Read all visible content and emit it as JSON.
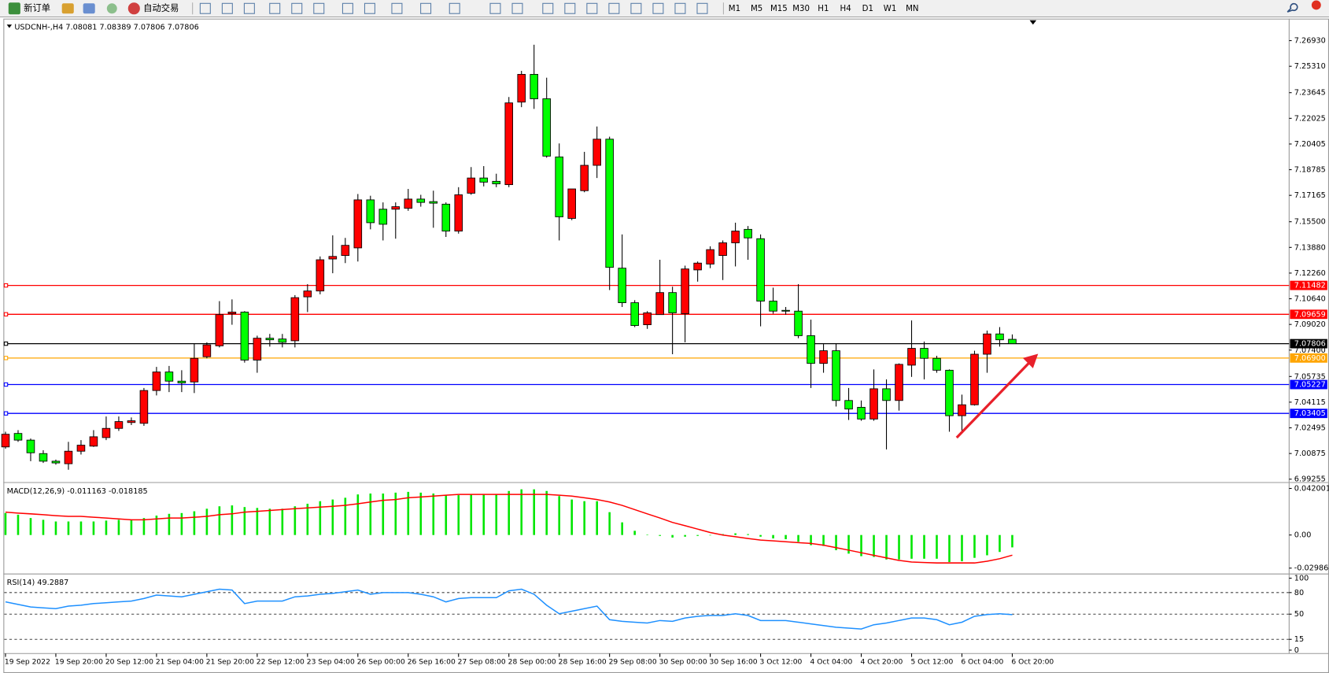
{
  "toolbar": {
    "buttons": [
      "新订单",
      "自动交易"
    ],
    "timeframes": [
      "M1",
      "M5",
      "M15",
      "M30",
      "H1",
      "H4",
      "D1",
      "W1",
      "MN"
    ]
  },
  "chart_data": [
    {
      "type": "candlestick",
      "title": "USDCNH-,H4  7.08081 7.08389 7.07806 7.07806",
      "up_color": "#ff0000",
      "down_color": "#00ff00",
      "xlim": [
        -0.1,
        102
      ],
      "xticks": [
        {
          "value": 0,
          "label": "19 Sep 2022"
        },
        {
          "value": 4,
          "label": "19 Sep 20:00"
        },
        {
          "value": 8,
          "label": "20 Sep 12:00"
        },
        {
          "value": 12,
          "label": "21 Sep 04:00"
        },
        {
          "value": 16,
          "label": "21 Sep 20:00"
        },
        {
          "value": 20,
          "label": "22 Sep 12:00"
        },
        {
          "value": 24,
          "label": "23 Sep 04:00"
        },
        {
          "value": 28,
          "label": "26 Sep 00:00"
        },
        {
          "value": 32,
          "label": "26 Sep 16:00"
        },
        {
          "value": 36,
          "label": "27 Sep 08:00"
        },
        {
          "value": 40,
          "label": "28 Sep 00:00"
        },
        {
          "value": 44,
          "label": "28 Sep 16:00"
        },
        {
          "value": 48,
          "label": "29 Sep 08:00"
        },
        {
          "value": 52,
          "label": "30 Sep 00:00"
        },
        {
          "value": 56,
          "label": "30 Sep 16:00"
        },
        {
          "value": 60,
          "label": "3 Oct 12:00"
        },
        {
          "value": 64,
          "label": "4 Oct 04:00"
        },
        {
          "value": 68,
          "label": "4 Oct 20:00"
        },
        {
          "value": 72,
          "label": "5 Oct 12:00"
        },
        {
          "value": 76,
          "label": "6 Oct 04:00"
        },
        {
          "value": 80,
          "label": "6 Oct 20:00"
        }
      ],
      "ylim": [
        6.9915,
        7.2821
      ],
      "yticks": [
        {
          "value": 7.2693,
          "label": "7.26930"
        },
        {
          "value": 7.2531,
          "label": "7.25310"
        },
        7.23645,
        7.22025,
        7.20405,
        7.18785,
        7.17165,
        {
          "value": 7.155,
          "label": "7.15500"
        },
        {
          "value": 7.1388,
          "label": "7.13880"
        },
        {
          "value": 7.1226,
          "label": "7.12260"
        },
        {
          "value": 7.1064,
          "label": "7.10640"
        },
        {
          "value": 7.0902,
          "label": "7.09020"
        },
        {
          "value": 7.074,
          "label": "7.07400"
        },
        7.05735,
        7.04115,
        7.02495,
        7.00875,
        6.99255
      ],
      "levels": [
        {
          "price": 7.11482,
          "color": "#ff0000"
        },
        {
          "price": 7.09659,
          "color": "#ff0000"
        },
        {
          "price": {
            "value": 7.069,
            "label": "7.06900"
          },
          "color": "#ffa500"
        },
        {
          "price": 7.05227,
          "color": "#0000ff"
        },
        {
          "price": 7.03405,
          "color": "#0000ff"
        },
        {
          "price": 7.07806,
          "color": "#000000"
        }
      ],
      "open": [
        7.0129,
        7.0214,
        7.0172,
        7.0087,
        7.0039,
        7.0023,
        7.0102,
        7.0134,
        7.0188,
        7.0246,
        7.0283,
        7.0278,
        7.0485,
        7.0602,
        7.0544,
        7.0539,
        7.0698,
        7.0767,
        7.097,
        7.098,
        7.0677,
        7.0815,
        7.081,
        7.0799,
        7.1076,
        7.1113,
        7.1315,
        7.1337,
        7.1385,
        7.1688,
        7.1629,
        7.1629,
        7.1635,
        7.1693,
        7.1677,
        7.1661,
        7.1491,
        7.173,
        7.1826,
        7.1805,
        7.1784,
        7.2305,
        7.248,
        7.2326,
        7.1959,
        7.1571,
        7.1746,
        7.1906,
        7.2071,
        7.1257,
        7.1039,
        7.09,
        7.0964,
        7.1103,
        7.097,
        7.1246,
        7.1283,
        7.1337,
        7.1417,
        7.1502,
        7.1443,
        7.1049,
        7.0991,
        7.0986,
        7.0831,
        7.0656,
        7.0736,
        7.0422,
        7.0379,
        7.0305,
        7.0496,
        7.0422,
        7.0645,
        7.0751,
        7.0688,
        7.0613,
        7.0326,
        7.0395,
        7.0714,
        7.0842,
        7.08081
      ],
      "high": [
        7.0225,
        7.0235,
        7.0182,
        7.0108,
        7.0049,
        7.0161,
        7.0172,
        7.0235,
        7.0321,
        7.0321,
        7.0315,
        7.0501,
        7.0634,
        7.064,
        7.0613,
        7.0783,
        7.0789,
        7.1049,
        7.106,
        7.0986,
        7.0831,
        7.0842,
        7.0842,
        7.1087,
        7.1156,
        7.1331,
        7.1464,
        7.1448,
        7.1725,
        7.1714,
        7.1672,
        7.1672,
        7.1757,
        7.172,
        7.1746,
        7.1672,
        7.1768,
        7.1895,
        7.1901,
        7.1853,
        7.2337,
        7.2502,
        7.2667,
        7.2459,
        7.2044,
        7.1757,
        7.1991,
        7.2151,
        7.2087,
        7.147,
        7.1055,
        7.0986,
        7.131,
        7.114,
        7.1273,
        7.1299,
        7.1395,
        7.1432,
        7.1544,
        7.1523,
        7.147,
        7.1134,
        7.1012,
        7.1156,
        7.0932,
        7.0778,
        7.0783,
        7.0501,
        7.0422,
        7.0618,
        7.0555,
        7.0656,
        7.0927,
        7.0794,
        7.0704,
        7.0618,
        7.0459,
        7.0736,
        7.0863,
        7.0885,
        7.08389
      ],
      "low": [
        7.0118,
        7.0161,
        7.0039,
        7.0028,
        7.0017,
        6.9985,
        7.0081,
        7.0129,
        7.0172,
        7.023,
        7.0267,
        7.0262,
        7.0454,
        7.0475,
        7.0475,
        7.0469,
        7.0688,
        7.0757,
        7.09,
        7.0661,
        7.0597,
        7.0762,
        7.0757,
        7.0757,
        7.098,
        7.1092,
        7.1225,
        7.1289,
        7.1299,
        7.1502,
        7.1432,
        7.1443,
        7.1619,
        7.1645,
        7.1512,
        7.1454,
        7.1475,
        7.172,
        7.1773,
        7.1768,
        7.1768,
        7.2273,
        7.2262,
        7.1954,
        7.1432,
        7.156,
        7.1736,
        7.1826,
        7.1119,
        7.1012,
        7.0885,
        7.0874,
        7.0964,
        7.0714,
        7.0789,
        7.1172,
        7.1257,
        7.1182,
        7.1268,
        7.131,
        7.089,
        7.097,
        7.0964,
        7.0815,
        7.0501,
        7.0597,
        7.0384,
        7.0299,
        7.0294,
        7.0294,
        7.0113,
        7.0358,
        7.0571,
        7.0555,
        7.0597,
        7.0225,
        7.0225,
        7.039,
        7.0597,
        7.0762,
        7.07806
      ],
      "close": [
        7.0209,
        7.0172,
        7.0092,
        7.0039,
        7.0028,
        7.0102,
        7.014,
        7.0193,
        7.0246,
        7.0289,
        7.0294,
        7.0485,
        7.0602,
        7.0544,
        7.0533,
        7.0688,
        7.0773,
        7.0964,
        7.098,
        7.0677,
        7.0815,
        7.0805,
        7.0789,
        7.1071,
        7.1113,
        7.131,
        7.1331,
        7.1401,
        7.1688,
        7.1544,
        7.1534,
        7.1645,
        7.1693,
        7.1672,
        7.1667,
        7.1491,
        7.172,
        7.1826,
        7.18,
        7.1789,
        7.23,
        7.248,
        7.2326,
        7.1964,
        7.1581,
        7.1757,
        7.1906,
        7.2071,
        7.1262,
        7.1039,
        7.0895,
        7.0975,
        7.1103,
        7.0975,
        7.1252,
        7.1289,
        7.1374,
        7.1417,
        7.1491,
        7.1448,
        7.1049,
        7.0986,
        7.0986,
        7.0831,
        7.0656,
        7.0736,
        7.0422,
        7.0368,
        7.0305,
        7.0496,
        7.0422,
        7.065,
        7.0751,
        7.0688,
        7.0613,
        7.0326,
        7.0395,
        7.0714,
        7.0842,
        7.0805,
        7.07806
      ]
    },
    {
      "type": "macd",
      "title": "MACD(12,26,9) -0.011163 -0.018185",
      "ylim": [
        -0.0336,
        0.0458
      ],
      "yticks": [
        0.042001,
        {
          "value": 0,
          "label": "0.00"
        },
        -0.029864
      ],
      "series": [
        {
          "name": "MACD",
          "kind": "histogram",
          "color": "#00e600",
          "values": [
            0.0198,
            0.0183,
            0.0153,
            0.0137,
            0.0122,
            0.0122,
            0.0122,
            0.0122,
            0.013,
            0.0137,
            0.0137,
            0.0153,
            0.0175,
            0.0191,
            0.0198,
            0.0214,
            0.0237,
            0.0259,
            0.0267,
            0.0252,
            0.0244,
            0.0237,
            0.0237,
            0.0259,
            0.0282,
            0.0305,
            0.032,
            0.0336,
            0.0366,
            0.0374,
            0.0374,
            0.0382,
            0.0389,
            0.0382,
            0.0374,
            0.0359,
            0.0359,
            0.0366,
            0.0366,
            0.0366,
            0.0397,
            0.0412,
            0.0412,
            0.0397,
            0.0351,
            0.032,
            0.0305,
            0.0305,
            0.0206,
            0.0114,
            0.0038,
            0.0003,
            -0.0008,
            -0.0023,
            -0.0015,
            -0.0008,
            -0.0002,
            0.0008,
            0.0015,
            0.0008,
            -0.0015,
            -0.0031,
            -0.0038,
            -0.0061,
            -0.0092,
            -0.0099,
            -0.0137,
            -0.0168,
            -0.0191,
            -0.0198,
            -0.0221,
            -0.0221,
            -0.0214,
            -0.0214,
            -0.0214,
            -0.0244,
            -0.0237,
            -0.0206,
            -0.0183,
            -0.0153,
            -0.011163
          ]
        },
        {
          "name": "Signal",
          "kind": "line",
          "color": "#ff0000",
          "values": [
            0.0206,
            0.0198,
            0.0191,
            0.0183,
            0.0175,
            0.0168,
            0.0168,
            0.016,
            0.0153,
            0.0145,
            0.0137,
            0.0137,
            0.0145,
            0.0153,
            0.0153,
            0.016,
            0.0168,
            0.0183,
            0.0191,
            0.0206,
            0.0214,
            0.0221,
            0.0229,
            0.0237,
            0.0244,
            0.0252,
            0.0259,
            0.0267,
            0.0282,
            0.0298,
            0.0313,
            0.032,
            0.0336,
            0.0343,
            0.0351,
            0.0359,
            0.0366,
            0.0366,
            0.0366,
            0.0366,
            0.0366,
            0.0366,
            0.0366,
            0.0366,
            0.0359,
            0.0351,
            0.0336,
            0.032,
            0.0298,
            0.0267,
            0.0229,
            0.0191,
            0.0153,
            0.0114,
            0.0084,
            0.0053,
            0.0023,
            0.0,
            -0.0015,
            -0.0031,
            -0.0046,
            -0.0053,
            -0.0061,
            -0.0069,
            -0.0076,
            -0.0092,
            -0.0114,
            -0.0137,
            -0.016,
            -0.0183,
            -0.0206,
            -0.0229,
            -0.0244,
            -0.0248,
            -0.0252,
            -0.0252,
            -0.0252,
            -0.0252,
            -0.0237,
            -0.0214,
            -0.018185
          ]
        }
      ]
    },
    {
      "type": "rsi",
      "title": "RSI(14) 49.2887",
      "ylim": [
        -4.7,
        103.5
      ],
      "yticks": [
        100,
        80,
        50,
        15,
        0
      ],
      "dashed_levels": [
        80,
        50,
        15
      ],
      "series": [
        {
          "name": "RSI",
          "kind": "line",
          "color": "#1e90ff",
          "values": [
            67.1,
            63.5,
            60,
            58.8,
            57.6,
            61.2,
            62.4,
            64.7,
            65.9,
            67.1,
            68.2,
            71.8,
            76.5,
            75.3,
            74.1,
            77.6,
            81.2,
            84.7,
            83.5,
            64.7,
            68.2,
            68.2,
            68.2,
            74.1,
            75.3,
            77.6,
            78.8,
            81.2,
            83.5,
            77.6,
            80,
            80,
            80,
            77.6,
            74.1,
            67.1,
            71.8,
            72.9,
            72.9,
            72.9,
            82.4,
            84.7,
            77.6,
            62.4,
            50.6,
            54.1,
            57.6,
            61.2,
            42.4,
            40,
            38.8,
            37.6,
            41.2,
            40,
            44.7,
            47.1,
            48.2,
            48.2,
            50.6,
            48.2,
            41.2,
            41.2,
            41.2,
            38.8,
            36.5,
            34.1,
            31.8,
            30.6,
            29.4,
            35.3,
            37.6,
            41.2,
            44.7,
            44.7,
            42.4,
            35.3,
            38.8,
            47.1,
            49.4,
            50.6,
            49.2887
          ]
        }
      ]
    }
  ]
}
